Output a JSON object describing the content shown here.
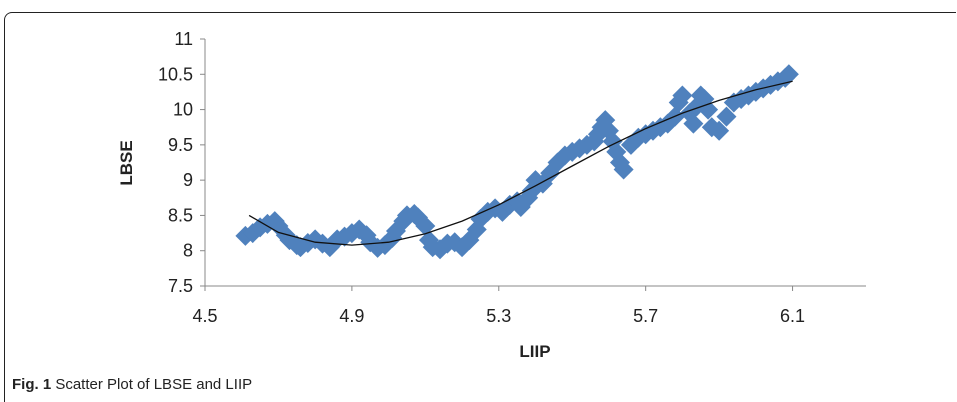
{
  "caption": {
    "label": "Fig. 1",
    "text": " Scatter Plot of LBSE and LIIP"
  },
  "chart_data": {
    "type": "scatter",
    "xlabel": "LIIP",
    "ylabel": "LBSE",
    "xlim": [
      4.5,
      6.3
    ],
    "ylim": [
      7.5,
      11
    ],
    "xticks": [
      "4.5",
      "4.9",
      "5.3",
      "5.7",
      "6.1"
    ],
    "yticks": [
      "7.5",
      "8",
      "8.5",
      "9",
      "9.5",
      "10",
      "10.5",
      "11"
    ],
    "grid": false,
    "marker": "diamond",
    "colors": {
      "points": "#4f81bd",
      "trend": "#111111"
    },
    "series": [
      {
        "x": [
          4.61,
          4.63,
          4.65,
          4.67,
          4.69,
          4.7,
          4.72,
          4.73,
          4.75,
          4.76,
          4.78,
          4.8,
          4.82,
          4.84,
          4.86,
          4.88,
          4.9,
          4.92,
          4.94,
          4.95,
          4.97,
          4.99,
          5.01,
          5.02,
          5.04,
          5.05,
          5.07,
          5.08,
          5.1,
          5.11,
          5.12,
          5.14,
          5.16,
          5.18,
          5.2,
          5.22,
          5.24,
          5.25,
          5.27,
          5.29,
          5.31,
          5.33,
          5.35,
          5.36,
          5.38,
          5.39,
          5.4,
          5.42,
          5.44,
          5.46,
          5.48,
          5.5,
          5.52,
          5.54,
          5.56,
          5.57,
          5.58,
          5.59,
          5.6,
          5.61,
          5.62,
          5.63,
          5.64,
          5.66,
          5.68,
          5.7,
          5.72,
          5.74,
          5.76,
          5.78,
          5.79,
          5.8,
          5.82,
          5.83,
          5.84,
          5.85,
          5.86,
          5.87,
          5.88,
          5.9,
          5.92,
          5.94,
          5.96,
          5.98,
          6.0,
          6.02,
          6.04,
          6.06,
          6.08,
          6.09
        ],
        "y": [
          8.21,
          8.25,
          8.33,
          8.38,
          8.42,
          8.35,
          8.22,
          8.15,
          8.08,
          8.05,
          8.11,
          8.16,
          8.1,
          8.05,
          8.16,
          8.2,
          8.25,
          8.3,
          8.22,
          8.12,
          8.04,
          8.08,
          8.18,
          8.28,
          8.42,
          8.5,
          8.52,
          8.47,
          8.35,
          8.15,
          8.05,
          8.02,
          8.1,
          8.12,
          8.05,
          8.15,
          8.3,
          8.45,
          8.55,
          8.6,
          8.55,
          8.65,
          8.7,
          8.62,
          8.75,
          8.85,
          9.0,
          8.95,
          9.1,
          9.25,
          9.35,
          9.4,
          9.45,
          9.5,
          9.55,
          9.65,
          9.75,
          9.85,
          9.7,
          9.55,
          9.4,
          9.25,
          9.15,
          9.5,
          9.6,
          9.65,
          9.7,
          9.75,
          9.8,
          9.9,
          10.1,
          10.2,
          9.95,
          9.8,
          10.05,
          10.2,
          10.15,
          10.0,
          9.75,
          9.7,
          9.9,
          10.1,
          10.15,
          10.2,
          10.25,
          10.3,
          10.35,
          10.4,
          10.45,
          10.5
        ]
      }
    ],
    "trendline": {
      "type": "polynomial",
      "x": [
        4.62,
        4.7,
        4.8,
        4.9,
        5.0,
        5.1,
        5.2,
        5.3,
        5.4,
        5.5,
        5.6,
        5.7,
        5.8,
        5.9,
        6.0,
        6.1
      ],
      "y": [
        8.5,
        8.26,
        8.12,
        8.08,
        8.12,
        8.24,
        8.42,
        8.65,
        8.92,
        9.2,
        9.48,
        9.73,
        9.95,
        10.13,
        10.28,
        10.4
      ]
    }
  }
}
